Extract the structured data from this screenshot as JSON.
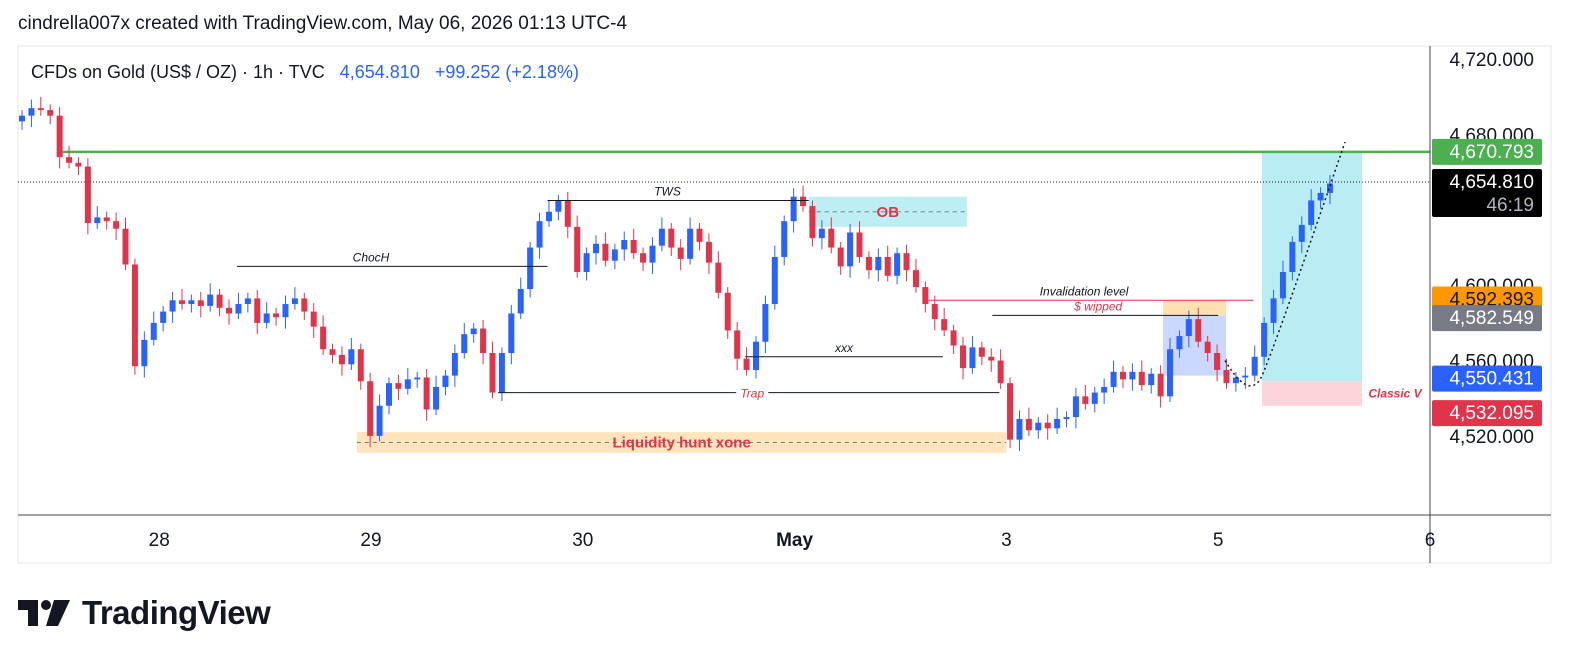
{
  "header": {
    "credit": "cindrella007x created with TradingView.com, May 06, 2026 01:13 UTC-4"
  },
  "logo": {
    "text": "TradingView",
    "icon": "tradingview-logo-icon"
  },
  "colors": {
    "up": "#2962ff",
    "down": "#e0344a",
    "resistance": "#4caf50",
    "ob_zone": "#b2ebf2",
    "liquidity_zone": "#ffe0b2",
    "target_zone": "#b2ebf2",
    "stop_zone": "#fcd4d9",
    "price_tag": "#000000",
    "annotation_red": "#e0344a"
  },
  "chart_data": {
    "type": "candlestick",
    "symbol": "CFDs on Gold (US$ / OZ) · 1h · TVC",
    "last_price": "4,654.810",
    "change": "+99.252 (+2.18%)",
    "countdown": "46:19",
    "ylim": [
      4478,
      4727
    ],
    "y_ticks": [
      "4,720.000",
      "4,680.000",
      "4,600.000",
      "4,560.000",
      "4,520.000"
    ],
    "x_ticks": [
      {
        "label": "28",
        "t": 0.14,
        "bold": false
      },
      {
        "label": "29",
        "t": 0.29,
        "bold": false
      },
      {
        "label": "30",
        "t": 0.44,
        "bold": false
      },
      {
        "label": "May",
        "t": 0.59,
        "bold": true
      },
      {
        "label": "3",
        "t": 0.74,
        "bold": false
      },
      {
        "label": "5",
        "t": 0.89,
        "bold": false
      },
      {
        "label": "6",
        "t": 1.04,
        "bold": false
      }
    ],
    "price_tags": [
      {
        "value": "4,670.793",
        "price": 4670.793,
        "bg": "#4caf50",
        "fg": "#ffffff"
      },
      {
        "value": "4,654.810",
        "price": 4654.81,
        "bg": "#000000",
        "fg": "#ffffff",
        "sub": "46:19"
      },
      {
        "value": "4,592.393",
        "price": 4592.393,
        "bg": "#ff9800",
        "fg": "#131722"
      },
      {
        "value": "4,582.549",
        "price": 4582.549,
        "bg": "#787b86",
        "fg": "#ffffff"
      },
      {
        "value": "4,550.431",
        "price": 4550.431,
        "bg": "#2962ff",
        "fg": "#ffffff"
      },
      {
        "value": "4,532.095",
        "price": 4532.095,
        "bg": "#e0344a",
        "fg": "#ffffff"
      }
    ],
    "closes": [
      4690,
      4694,
      4693,
      4690,
      4668,
      4665,
      4663,
      4633,
      4636,
      4634,
      4630,
      4611,
      4557,
      4571,
      4580,
      4586,
      4592,
      4590,
      4592,
      4589,
      4595,
      4588,
      4585,
      4590,
      4593,
      4580,
      4585,
      4583,
      4590,
      4593,
      4586,
      4578,
      4566,
      4563,
      4558,
      4566,
      4549,
      4520,
      4536,
      4548,
      4545,
      4550,
      4551,
      4534,
      4546,
      4552,
      4564,
      4574,
      4577,
      4564,
      4543,
      4564,
      4585,
      4598,
      4620,
      4634,
      4639,
      4645,
      4631,
      4607,
      4617,
      4622,
      4613,
      4619,
      4624,
      4617,
      4612,
      4621,
      4630,
      4620,
      4614,
      4630,
      4623,
      4612,
      4596,
      4576,
      4561,
      4555,
      4570,
      4590,
      4615,
      4634,
      4647,
      4642,
      4625,
      4630,
      4620,
      4610,
      4628,
      4615,
      4608,
      4615,
      4605,
      4617,
      4608,
      4599,
      4590,
      4582,
      4576,
      4568,
      4556,
      4567,
      4562,
      4560,
      4548,
      4518,
      4529,
      4523,
      4527,
      4524,
      4529,
      4530,
      4541,
      4537,
      4543,
      4546,
      4554,
      4550,
      4554,
      4547,
      4553,
      4541,
      4566,
      4573,
      4582,
      4570,
      4564,
      4555,
      4548,
      4551,
      4552,
      4562,
      4580,
      4593,
      4607,
      4623,
      4632,
      4645,
      4649,
      4654
    ],
    "levels": [
      {
        "name": "resistance",
        "price": 4670.8,
        "style": "solid-green",
        "t0": 0.03,
        "t1": 1.0
      },
      {
        "name": "last-price",
        "price": 4654.81,
        "style": "dotted",
        "t0": 0.0,
        "t1": 1.0
      }
    ],
    "annotations": [
      {
        "text": "ChocH",
        "type": "line",
        "t0": 0.155,
        "t1": 0.375,
        "price": 4610,
        "label_at": 0.25
      },
      {
        "text": "TWS",
        "type": "line",
        "t0": 0.375,
        "t1": 0.56,
        "price": 4645,
        "label_at": 0.46
      },
      {
        "text": "xxx",
        "type": "line",
        "t0": 0.515,
        "t1": 0.655,
        "price": 4562,
        "label_at": 0.585
      },
      {
        "text": "Trap",
        "type": "line",
        "t0": 0.34,
        "t1": 0.695,
        "price": 4543,
        "label_at": 0.52
      },
      {
        "text": "Invalidation level",
        "type": "line",
        "t0": 0.645,
        "t1": 0.875,
        "price": 4592,
        "label_at": 0.755
      },
      {
        "text": "$ wipped",
        "type": "line",
        "t0": 0.69,
        "t1": 0.85,
        "price": 4584,
        "label_at": 0.765
      },
      {
        "text": "OB",
        "type": "zone",
        "t0": 0.56,
        "t1": 0.672,
        "p0": 4631,
        "p1": 4647
      },
      {
        "text": "Liquidity hunt xone",
        "type": "zone",
        "t0": 0.24,
        "t1": 0.7,
        "p0": 4511,
        "p1": 4522
      },
      {
        "text": "Classic V",
        "type": "label",
        "t": 0.955,
        "price": 4543
      }
    ]
  }
}
